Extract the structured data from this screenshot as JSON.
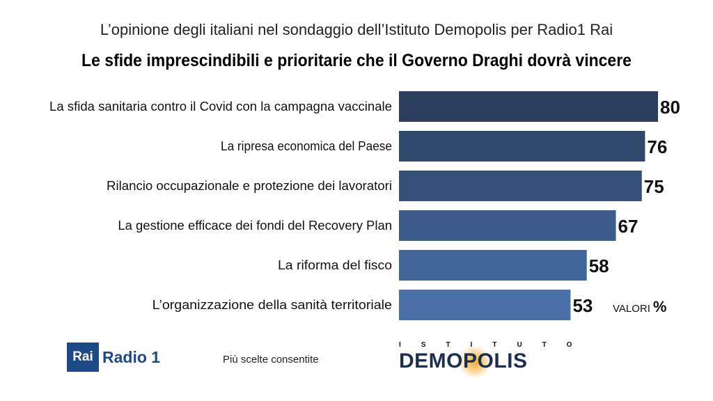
{
  "header": {
    "subtitle": "L’opinione degli italiani nel sondaggio dell’Istituto Demopolis per Radio1 Rai",
    "title": "Le sfide imprescindibili e prioritarie che il Governo Draghi dovrà vincere"
  },
  "chart_data": {
    "type": "bar",
    "orientation": "horizontal",
    "categories": [
      "La sfida sanitaria contro il Covid con la campagna vaccinale",
      "La ripresa economica del Paese",
      "Rilancio occupazionale e protezione dei lavoratori",
      "La gestione efficace dei fondi del Recovery Plan",
      "La riforma del fisco",
      "L’organizzazione della sanità territoriale"
    ],
    "values": [
      80,
      76,
      75,
      67,
      58,
      53
    ],
    "colors": [
      "#2b3e5e",
      "#31486d",
      "#365179",
      "#3d5c89",
      "#43669a",
      "#4a70a8"
    ],
    "xlim": [
      0,
      100
    ],
    "grid": false
  },
  "unit_note": {
    "label": "VALORI",
    "symbol": "%"
  },
  "footer": {
    "note": "Più scelte consentite",
    "rai_logo": {
      "box_text": "Rai",
      "name": "Radio 1",
      "color": "#1d4a86"
    },
    "demopolis_logo": {
      "top": "ISTITUTO",
      "main": "DEMOPOLIS",
      "color": "#1d2f4f",
      "glow_color": "#f5aa28"
    }
  }
}
